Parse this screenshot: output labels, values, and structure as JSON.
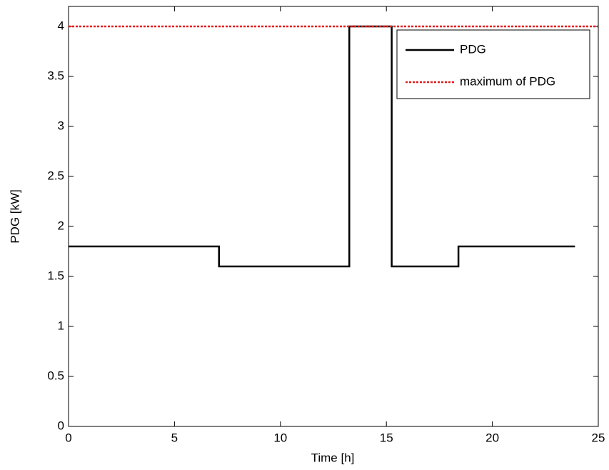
{
  "chart_data": {
    "type": "line",
    "xlabel": "Time [h]",
    "ylabel": "PDG [kW]",
    "xlim": [
      0,
      25
    ],
    "ylim": [
      0,
      4.2
    ],
    "xticks": [
      0,
      5,
      10,
      15,
      20,
      25
    ],
    "yticks": [
      0,
      0.5,
      1,
      1.5,
      2,
      2.5,
      3,
      3.5,
      4
    ],
    "grid": false,
    "legend": "upper right",
    "series": [
      {
        "name": "PDG",
        "color": "#000000",
        "style": "solid",
        "x": [
          0,
          7.1,
          7.1,
          13.25,
          13.25,
          15.25,
          15.25,
          18.4,
          18.4,
          23.9
        ],
        "values": [
          1.8,
          1.8,
          1.6,
          1.6,
          4,
          4,
          1.6,
          1.6,
          1.8,
          1.8
        ]
      },
      {
        "name": "maximum of PDG",
        "color": "#e41a1c",
        "style": "dotted",
        "x": [
          0,
          25
        ],
        "values": [
          4,
          4
        ]
      }
    ]
  }
}
